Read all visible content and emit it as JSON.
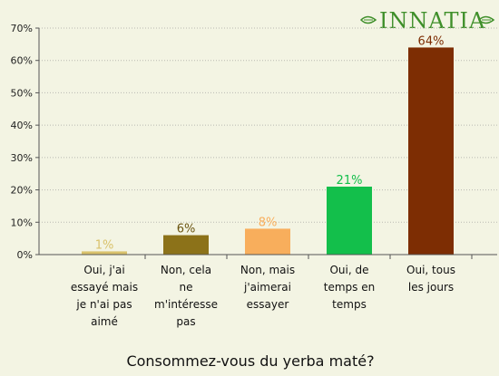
{
  "logo": {
    "text": "INNATIA",
    "color": "#3f8f2a"
  },
  "chart_data": {
    "type": "bar",
    "title": "",
    "xlabel": "Consommez-vous du yerba maté?",
    "ylabel": "",
    "ylim": [
      0,
      70
    ],
    "y_ticks": [
      "0%",
      "10%",
      "20%",
      "30%",
      "40%",
      "50%",
      "60%",
      "70%"
    ],
    "grid": true,
    "categories": [
      [
        "Oui, j'ai",
        "essayé mais",
        "je n'ai pas",
        "aimé"
      ],
      [
        "Non, cela",
        "ne",
        "m'intéresse",
        "pas"
      ],
      [
        "Non, mais",
        "j'aimerai",
        "essayer"
      ],
      [
        "Oui, de",
        "temps en",
        "temps"
      ],
      [
        "Oui, tous",
        "les jours"
      ]
    ],
    "values": [
      1,
      6,
      8,
      21,
      64
    ],
    "value_labels": [
      "1%",
      "6%",
      "8%",
      "21%",
      "64%"
    ],
    "bar_colors": [
      "#d9c26b",
      "#8c7219",
      "#f8ae5c",
      "#13bf4b",
      "#7d2d03"
    ],
    "label_colors": [
      "#d9c26b",
      "#6a5410",
      "#f8ae5c",
      "#13bf4b",
      "#7d2d03"
    ]
  }
}
